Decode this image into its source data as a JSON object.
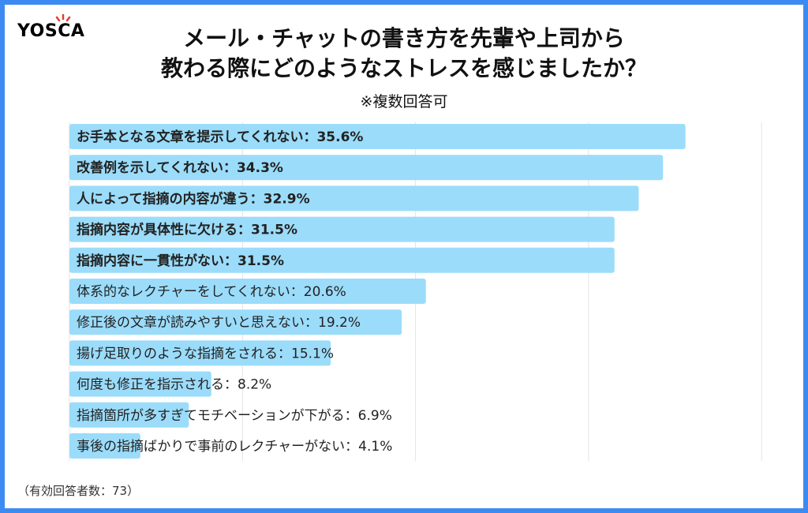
{
  "logo": {
    "text": "YOSCA"
  },
  "title": {
    "line1": "メール・チャットの書き方を先輩や上司から",
    "line2": "教わる際にどのようなストレスを感じましたか？",
    "note": "※複数回答可"
  },
  "footnote": "（有効回答者数：73）",
  "colors": {
    "frame": "#3d8bf2",
    "bar": "#9bdcfa",
    "grid": "#e3e3e3"
  },
  "chart_data": {
    "type": "bar",
    "orientation": "horizontal",
    "categories": [
      "お手本となる文章を提示してくれない",
      "改善例を示してくれない",
      "人によって指摘の内容が違う",
      "指摘内容が具体性に欠ける",
      "指摘内容に一貫性がない",
      "体系的なレクチャーをしてくれない",
      "修正後の文章が読みやすいと思えない",
      "揚げ足取りのような指摘をされる",
      "何度も修正を指示される",
      "指摘箇所が多すぎてモチベーションが下がる",
      "事後の指摘ばかりで事前のレクチャーがない"
    ],
    "values": [
      35.6,
      34.3,
      32.9,
      31.5,
      31.5,
      20.6,
      19.2,
      15.1,
      8.2,
      6.9,
      4.1
    ],
    "labels": [
      "お手本となる文章を提示してくれない：35.6%",
      "改善例を示してくれない：34.3%",
      "人によって指摘の内容が違う：32.9%",
      "指摘内容が具体性に欠ける：31.5%",
      "指摘内容に一貫性がない：31.5%",
      "体系的なレクチャーをしてくれない：20.6%",
      "修正後の文章が読みやすいと思えない：19.2%",
      "揚げ足取りのような指摘をされる：15.1%",
      "何度も修正を指示される：8.2%",
      "指摘箇所が多すぎてモチベーションが下がる：6.9%",
      "事後の指摘ばかりで事前のレクチャーがない：4.1%"
    ],
    "bold_top_n": 5,
    "xlim": [
      0,
      40
    ],
    "grid": true
  }
}
